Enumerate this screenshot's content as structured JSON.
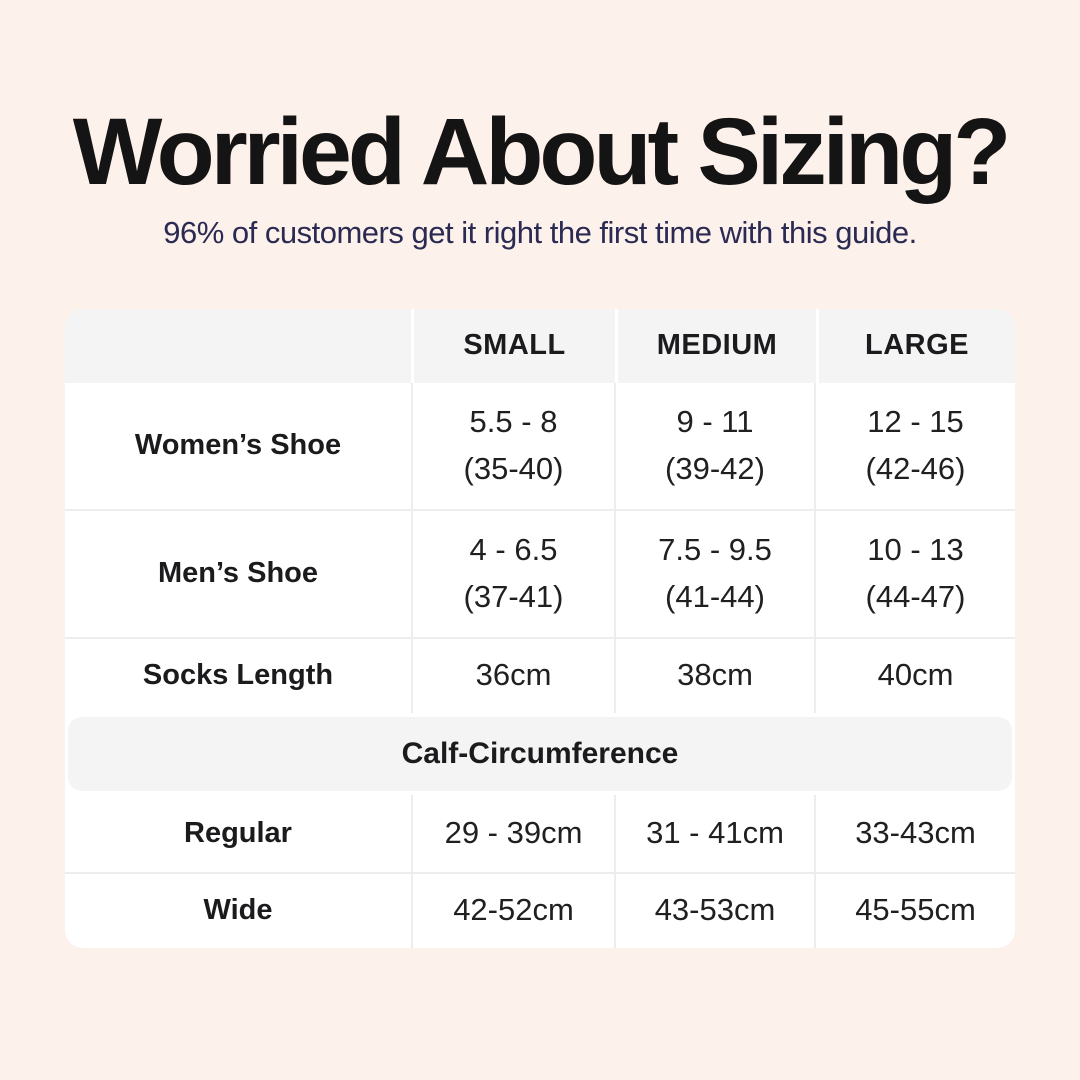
{
  "colors": {
    "background": "#fdf1eb",
    "sheet": "#ffffff",
    "header_band_gray": "#f4f4f5",
    "divider_gray": "#ededee",
    "title_text": "#141414",
    "subtitle_text": "#2b2a52",
    "table_text": "#1b1b1d"
  },
  "header": {
    "title": "Worried About Sizing?",
    "subtitle": "96% of customers get it right the first time with this guide."
  },
  "table": {
    "columns": [
      "",
      "SMALL",
      "MEDIUM",
      "LARGE"
    ],
    "rows": [
      {
        "label": "Women’s Shoe",
        "values": [
          [
            "5.5 - 8",
            "(35-40)"
          ],
          [
            "9 - 11",
            "(39-42)"
          ],
          [
            "12 - 15",
            "(42-46)"
          ]
        ]
      },
      {
        "label": "Men’s Shoe",
        "values": [
          [
            "4 - 6.5",
            "(37-41)"
          ],
          [
            "7.5 - 9.5",
            "(41-44)"
          ],
          [
            "10 - 13",
            "(44-47)"
          ]
        ]
      },
      {
        "label": "Socks Length",
        "values": [
          "36cm",
          "38cm",
          "40cm"
        ]
      }
    ],
    "section_title": "Calf-Circumference",
    "section_rows": [
      {
        "label": "Regular",
        "values": [
          "29 - 39cm",
          "31 - 41cm",
          "33-43cm"
        ]
      },
      {
        "label": "Wide",
        "values": [
          "42-52cm",
          "43-53cm",
          "45-55cm"
        ]
      }
    ]
  },
  "chart_data": {
    "type": "table",
    "title": "Worried About Sizing?",
    "subtitle": "96% of customers get it right the first time with this guide.",
    "columns": [
      "",
      "SMALL",
      "MEDIUM",
      "LARGE"
    ],
    "rows": [
      [
        "Women’s Shoe",
        "5.5 - 8 (35-40)",
        "9 - 11 (39-42)",
        "12 - 15 (42-46)"
      ],
      [
        "Men’s Shoe",
        "4 - 6.5 (37-41)",
        "7.5 - 9.5 (41-44)",
        "10 - 13 (44-47)"
      ],
      [
        "Socks Length",
        "36cm",
        "38cm",
        "40cm"
      ],
      [
        "Calf-Circumference",
        "",
        "",
        ""
      ],
      [
        "Regular",
        "29 - 39cm",
        "31 - 41cm",
        "33-43cm"
      ],
      [
        "Wide",
        "42-52cm",
        "43-53cm",
        "45-55cm"
      ]
    ],
    "layout_hints": {
      "section_row_index": 3,
      "section_spans_all_columns": true,
      "two_line_cells": "shoe rows show US size on line 1 and EU size in parentheses on line 2"
    }
  }
}
